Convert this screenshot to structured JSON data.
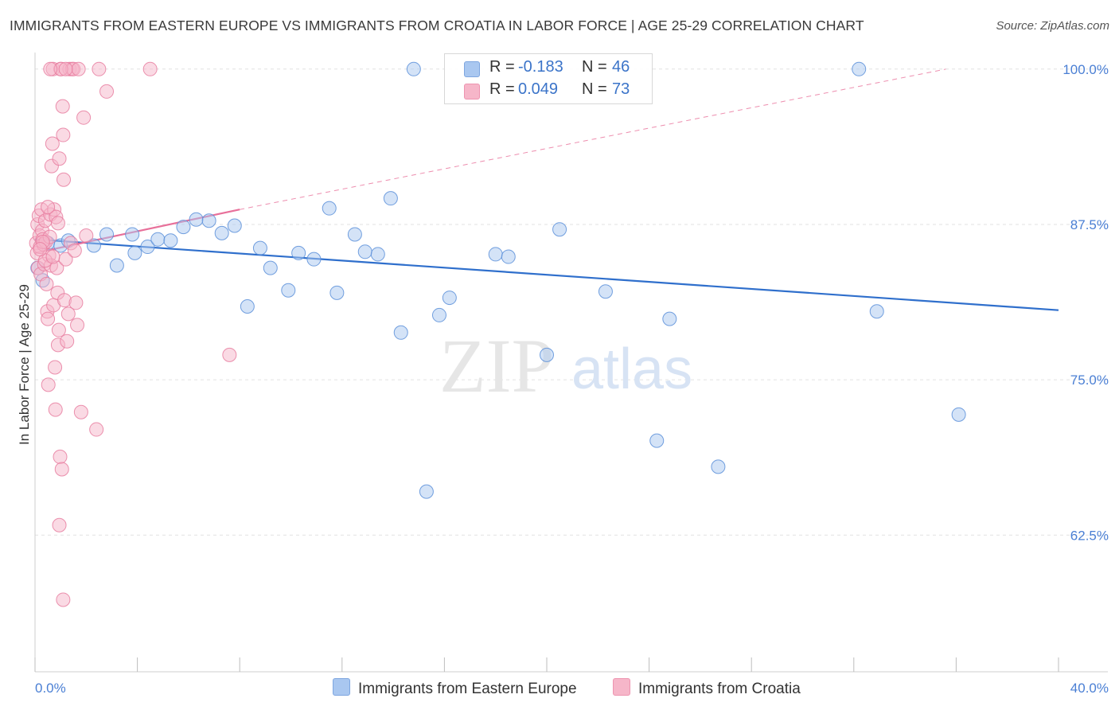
{
  "title": "IMMIGRANTS FROM EASTERN EUROPE VS IMMIGRANTS FROM CROATIA IN LABOR FORCE | AGE 25-29 CORRELATION CHART",
  "source": "Source: ZipAtlas.com",
  "watermark": {
    "zip": "ZIP",
    "atlas": "atlas"
  },
  "legend": {
    "r_label": "R =",
    "n_label": "N =",
    "rows": [
      {
        "r": "-0.183",
        "n": "46",
        "color": "#a9c7f0"
      },
      {
        "r": "0.049",
        "n": "73",
        "color": "#f6b6c9"
      }
    ]
  },
  "bottom_legend": [
    {
      "label": "Immigrants from Eastern Europe",
      "color": "#a9c7f0"
    },
    {
      "label": "Immigrants from Croatia",
      "color": "#f6b6c9"
    }
  ],
  "chart_data": {
    "type": "scatter",
    "title": "IMMIGRANTS FROM EASTERN EUROPE VS IMMIGRANTS FROM CROATIA IN LABOR FORCE | AGE 25-29 CORRELATION CHART",
    "xlabel": "",
    "ylabel": "In Labor Force | Age 25-29",
    "xlim": [
      0,
      40
    ],
    "ylim": [
      51.5,
      100.5
    ],
    "x_tick_labels": [
      "0.0%",
      "40.0%"
    ],
    "y_ticks": [
      62.5,
      75.0,
      87.5,
      100.0
    ],
    "y_tick_labels": [
      "62.5%",
      "75.0%",
      "87.5%",
      "100.0%"
    ],
    "grid": true,
    "series": [
      {
        "name": "Immigrants from Eastern Europe",
        "color": "#a9c7f0",
        "stroke": "#5b8fd9",
        "r": -0.183,
        "n": 46,
        "trend": {
          "x0": 0,
          "y0": 86.3,
          "x1": 40,
          "y1": 80.6,
          "style": "solid",
          "color": "#2f6fcc"
        },
        "points": [
          [
            0.1,
            84.0
          ],
          [
            0.3,
            83.0
          ],
          [
            0.5,
            86.0
          ],
          [
            1.0,
            85.8
          ],
          [
            1.3,
            86.2
          ],
          [
            2.3,
            85.8
          ],
          [
            2.8,
            86.7
          ],
          [
            3.2,
            84.2
          ],
          [
            3.8,
            86.7
          ],
          [
            3.9,
            85.2
          ],
          [
            4.4,
            85.7
          ],
          [
            4.8,
            86.3
          ],
          [
            5.3,
            86.2
          ],
          [
            5.8,
            87.3
          ],
          [
            6.3,
            87.9
          ],
          [
            6.8,
            87.8
          ],
          [
            7.3,
            86.8
          ],
          [
            7.8,
            87.4
          ],
          [
            8.3,
            80.9
          ],
          [
            8.8,
            85.6
          ],
          [
            9.2,
            84.0
          ],
          [
            9.9,
            82.2
          ],
          [
            10.3,
            85.2
          ],
          [
            10.9,
            84.7
          ],
          [
            11.5,
            88.8
          ],
          [
            11.8,
            82.0
          ],
          [
            12.5,
            86.7
          ],
          [
            12.9,
            85.3
          ],
          [
            13.4,
            85.1
          ],
          [
            13.9,
            89.6
          ],
          [
            14.3,
            78.8
          ],
          [
            15.3,
            66.0
          ],
          [
            15.8,
            80.2
          ],
          [
            16.2,
            81.6
          ],
          [
            18.0,
            85.1
          ],
          [
            18.5,
            84.9
          ],
          [
            20.0,
            77.0
          ],
          [
            20.5,
            87.1
          ],
          [
            22.3,
            82.1
          ],
          [
            24.3,
            70.1
          ],
          [
            24.8,
            79.9
          ],
          [
            26.7,
            68.0
          ],
          [
            32.2,
            100.0
          ],
          [
            32.9,
            80.5
          ],
          [
            36.1,
            72.2
          ],
          [
            14.8,
            100.0
          ]
        ]
      },
      {
        "name": "Immigrants from Croatia",
        "color": "#f6b6c9",
        "stroke": "#e87ea0",
        "r": 0.049,
        "n": 73,
        "trend": {
          "x0": 0,
          "y0": 85.2,
          "x1": 8.0,
          "y1": 88.7,
          "x2": 35.6,
          "y2": 100.0,
          "style": "solid-then-dashed",
          "color": "#e8709a"
        },
        "points": [
          [
            0.05,
            86.0
          ],
          [
            0.08,
            85.2
          ],
          [
            0.1,
            87.5
          ],
          [
            0.12,
            84.0
          ],
          [
            0.15,
            88.2
          ],
          [
            0.18,
            86.6
          ],
          [
            0.2,
            85.7
          ],
          [
            0.22,
            83.5
          ],
          [
            0.25,
            88.7
          ],
          [
            0.28,
            87.0
          ],
          [
            0.3,
            86.3
          ],
          [
            0.33,
            85.9
          ],
          [
            0.36,
            84.3
          ],
          [
            0.4,
            87.8
          ],
          [
            0.42,
            86.1
          ],
          [
            0.45,
            82.7
          ],
          [
            0.48,
            80.5
          ],
          [
            0.5,
            79.9
          ],
          [
            0.52,
            74.6
          ],
          [
            0.55,
            85.0
          ],
          [
            0.58,
            86.5
          ],
          [
            0.6,
            88.3
          ],
          [
            0.62,
            84.2
          ],
          [
            0.65,
            92.2
          ],
          [
            0.68,
            94.0
          ],
          [
            0.7,
            100.0
          ],
          [
            0.72,
            81.0
          ],
          [
            0.75,
            88.7
          ],
          [
            0.78,
            76.0
          ],
          [
            0.8,
            72.6
          ],
          [
            0.82,
            88.1
          ],
          [
            0.85,
            84.0
          ],
          [
            0.88,
            82.0
          ],
          [
            0.9,
            77.8
          ],
          [
            0.93,
            79.0
          ],
          [
            0.95,
            92.8
          ],
          [
            0.98,
            68.8
          ],
          [
            1.0,
            100.0
          ],
          [
            1.05,
            67.8
          ],
          [
            1.08,
            97.0
          ],
          [
            1.1,
            94.7
          ],
          [
            1.12,
            91.1
          ],
          [
            1.15,
            81.4
          ],
          [
            1.2,
            84.7
          ],
          [
            1.25,
            78.1
          ],
          [
            1.3,
            80.3
          ],
          [
            1.35,
            100.0
          ],
          [
            1.4,
            86.0
          ],
          [
            1.45,
            100.0
          ],
          [
            1.5,
            100.0
          ],
          [
            1.55,
            85.4
          ],
          [
            1.6,
            81.2
          ],
          [
            1.65,
            79.4
          ],
          [
            1.7,
            100.0
          ],
          [
            1.8,
            72.4
          ],
          [
            1.9,
            96.1
          ],
          [
            2.0,
            86.6
          ],
          [
            2.4,
            71.0
          ],
          [
            2.5,
            100.0
          ],
          [
            2.8,
            98.2
          ],
          [
            4.5,
            100.0
          ],
          [
            7.6,
            77.0
          ],
          [
            1.02,
            100.0
          ],
          [
            0.95,
            63.3
          ],
          [
            1.1,
            57.3
          ],
          [
            0.6,
            100.0
          ],
          [
            1.2,
            100.0
          ],
          [
            0.4,
            84.6
          ],
          [
            0.3,
            86.1
          ],
          [
            0.9,
            87.6
          ],
          [
            0.5,
            88.9
          ],
          [
            0.7,
            84.9
          ],
          [
            0.2,
            85.5
          ]
        ]
      }
    ]
  }
}
